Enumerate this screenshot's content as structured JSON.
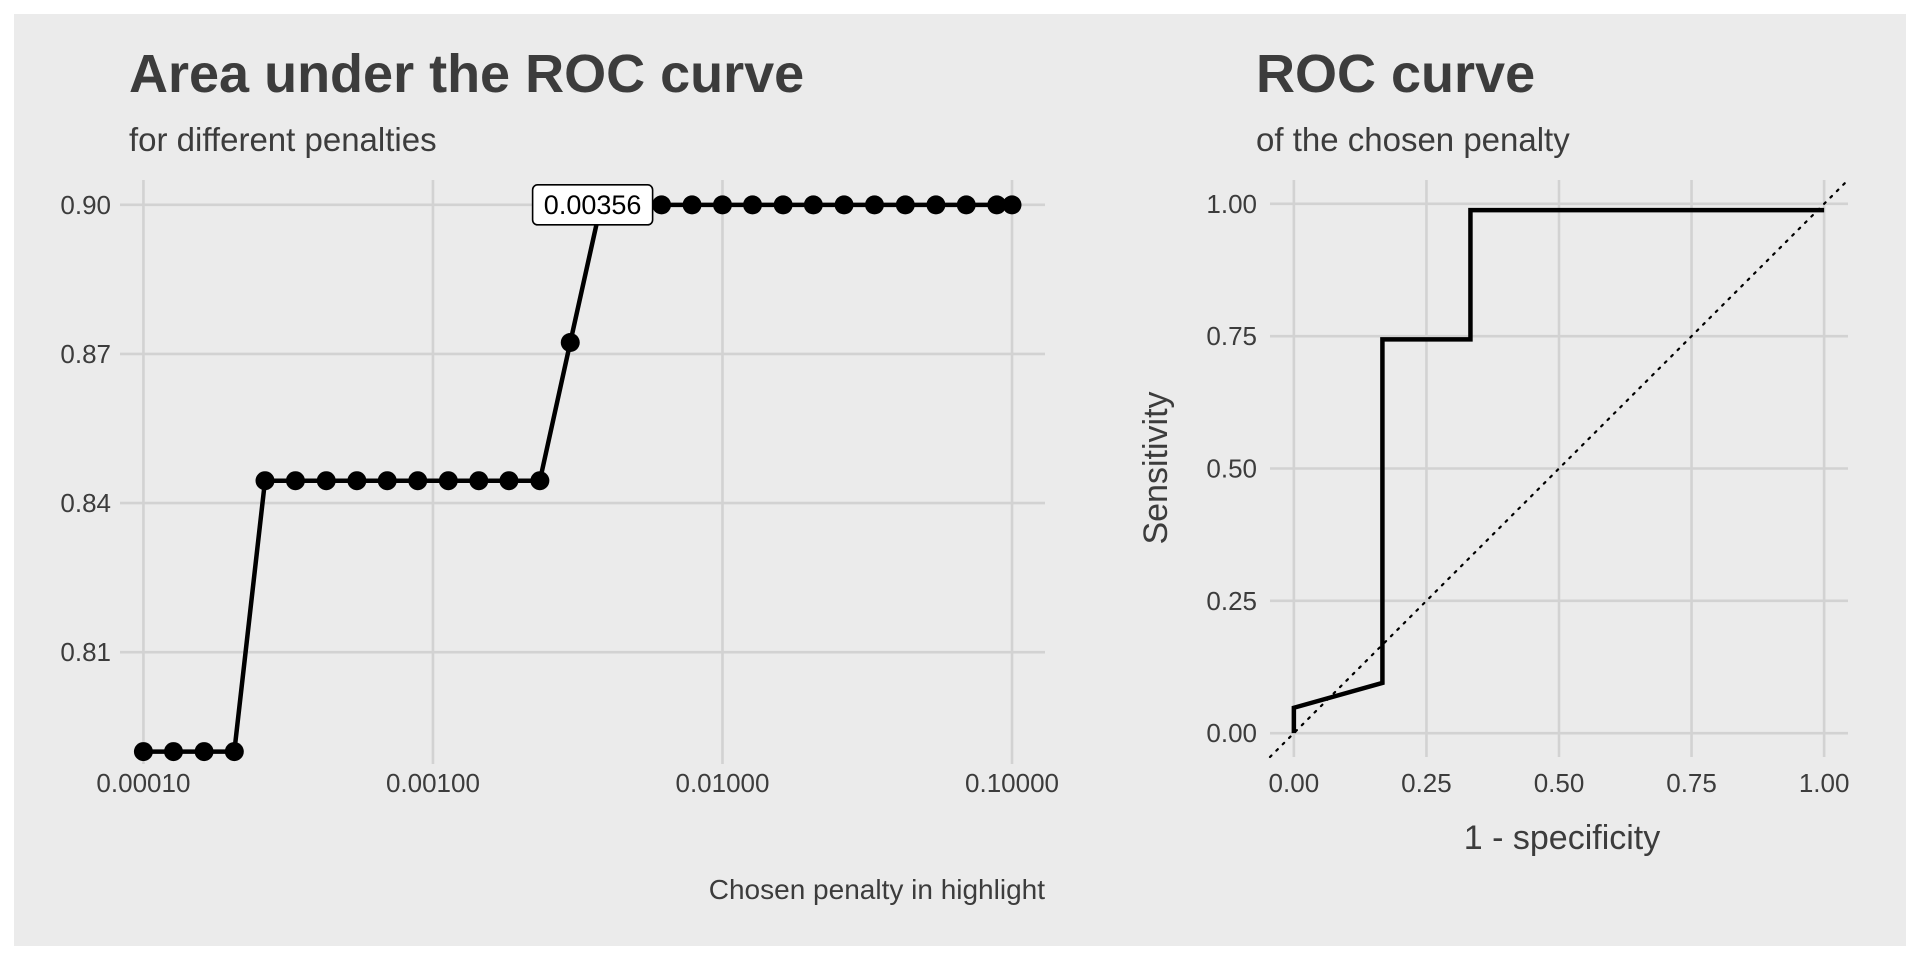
{
  "colors": {
    "background": "#ebebeb",
    "panel": "#f0f0f0",
    "grid": "#d2d2d2",
    "text": "#3c3c3c",
    "ink": "#000000"
  },
  "left": {
    "title": "Area under the ROC curve",
    "subtitle": "for different penalties",
    "caption": "Chosen penalty in highlight"
  },
  "right": {
    "title": "ROC curve",
    "subtitle": "of the chosen penalty"
  },
  "chart_data": [
    {
      "type": "line",
      "title": "Area under the ROC curve",
      "subtitle": "for different penalties",
      "xlabel": "",
      "ylabel": "",
      "caption": "Chosen penalty in highlight",
      "x_scale": "log10",
      "xlim": [
        8.3e-05,
        0.13
      ],
      "ylim": [
        0.7875,
        0.905
      ],
      "x_ticks": [
        0.0001,
        0.001,
        0.01,
        0.1
      ],
      "x_tick_labels": [
        "0.00010",
        "0.00100",
        "0.01000",
        "0.10000"
      ],
      "y_ticks": [
        0.81,
        0.84,
        0.87,
        0.9
      ],
      "y_tick_labels": [
        "0.81",
        "0.84",
        "0.87",
        "0.90"
      ],
      "grid": true,
      "x": [
        0.0001,
        0.000127,
        0.000162,
        0.000206,
        0.000263,
        0.000335,
        0.000428,
        0.000546,
        0.000695,
        0.000886,
        0.00113,
        0.00144,
        0.00183,
        0.00234,
        0.00298,
        0.0038,
        0.00483,
        0.00616,
        0.00785,
        0.01,
        0.0127,
        0.0162,
        0.0206,
        0.0263,
        0.0335,
        0.0428,
        0.0546,
        0.0695,
        0.0886,
        0.1
      ],
      "y": [
        0.79,
        0.79,
        0.79,
        0.79,
        0.8445,
        0.8445,
        0.8445,
        0.8445,
        0.8445,
        0.8445,
        0.8445,
        0.8445,
        0.8445,
        0.8445,
        0.8723,
        0.9,
        0.9,
        0.9,
        0.9,
        0.9,
        0.9,
        0.9,
        0.9,
        0.9,
        0.9,
        0.9,
        0.9,
        0.9,
        0.9,
        0.9
      ],
      "highlight": {
        "x": 0.00356,
        "y": 0.9,
        "label": "0.00356"
      }
    },
    {
      "type": "line",
      "title": "ROC curve",
      "subtitle": "of the chosen penalty",
      "xlabel": "1 - specificity",
      "ylabel": "Sensitivity",
      "xlim": [
        -0.045,
        1.045
      ],
      "ylim": [
        -0.045,
        1.045
      ],
      "x_ticks": [
        0,
        0.25,
        0.5,
        0.75,
        1
      ],
      "x_tick_labels": [
        "0.00",
        "0.25",
        "0.50",
        "0.75",
        "1.00"
      ],
      "y_ticks": [
        0,
        0.25,
        0.5,
        0.75,
        1
      ],
      "y_tick_labels": [
        "0.00",
        "0.25",
        "0.50",
        "0.75",
        "1.00"
      ],
      "grid": true,
      "reference_line": "diagonal (dotted)",
      "x": [
        0,
        0,
        0.167,
        0.167,
        0.333,
        0.333,
        1
      ],
      "y": [
        0,
        0.048,
        0.095,
        0.744,
        0.744,
        0.988,
        0.988
      ]
    }
  ]
}
